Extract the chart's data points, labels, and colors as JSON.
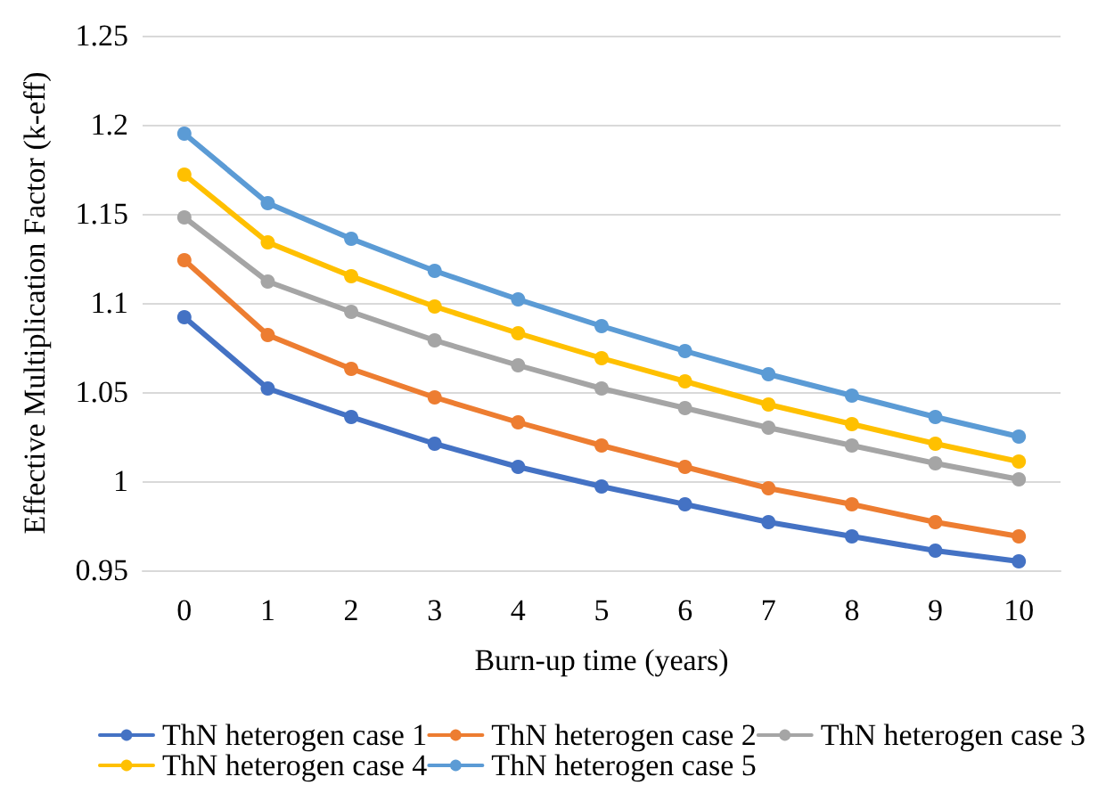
{
  "chart_data": {
    "type": "line",
    "xlabel": "Burn-up time (years)",
    "ylabel": "Effective Multiplication Factor (k-eff)",
    "categories": [
      "0",
      "1",
      "2",
      "3",
      "4",
      "5",
      "6",
      "7",
      "8",
      "9",
      "10"
    ],
    "ylim": [
      0.95,
      1.25
    ],
    "yticks": [
      0.95,
      1,
      1.05,
      1.1,
      1.15,
      1.2,
      1.25
    ],
    "grid": "y",
    "legend": "bottom",
    "marker": "circle",
    "line_style": "solid",
    "series": [
      {
        "name": "ThN heterogen case 1",
        "color": "#4472c4",
        "values": [
          1.092,
          1.052,
          1.036,
          1.021,
          1.008,
          0.997,
          0.987,
          0.977,
          0.969,
          0.961,
          0.955
        ]
      },
      {
        "name": "ThN heterogen case 2",
        "color": "#ed7d31",
        "values": [
          1.124,
          1.082,
          1.063,
          1.047,
          1.033,
          1.02,
          1.008,
          0.996,
          0.987,
          0.977,
          0.969
        ]
      },
      {
        "name": "ThN heterogen case 3",
        "color": "#a5a5a5",
        "values": [
          1.148,
          1.112,
          1.095,
          1.079,
          1.065,
          1.052,
          1.041,
          1.03,
          1.02,
          1.01,
          1.001
        ]
      },
      {
        "name": "ThN heterogen case 4",
        "color": "#ffc000",
        "values": [
          1.172,
          1.134,
          1.115,
          1.098,
          1.083,
          1.069,
          1.056,
          1.043,
          1.032,
          1.021,
          1.011
        ]
      },
      {
        "name": "ThN heterogen case 5",
        "color": "#5b9bd5",
        "values": [
          1.195,
          1.156,
          1.136,
          1.118,
          1.102,
          1.087,
          1.073,
          1.06,
          1.048,
          1.036,
          1.025
        ]
      }
    ]
  }
}
